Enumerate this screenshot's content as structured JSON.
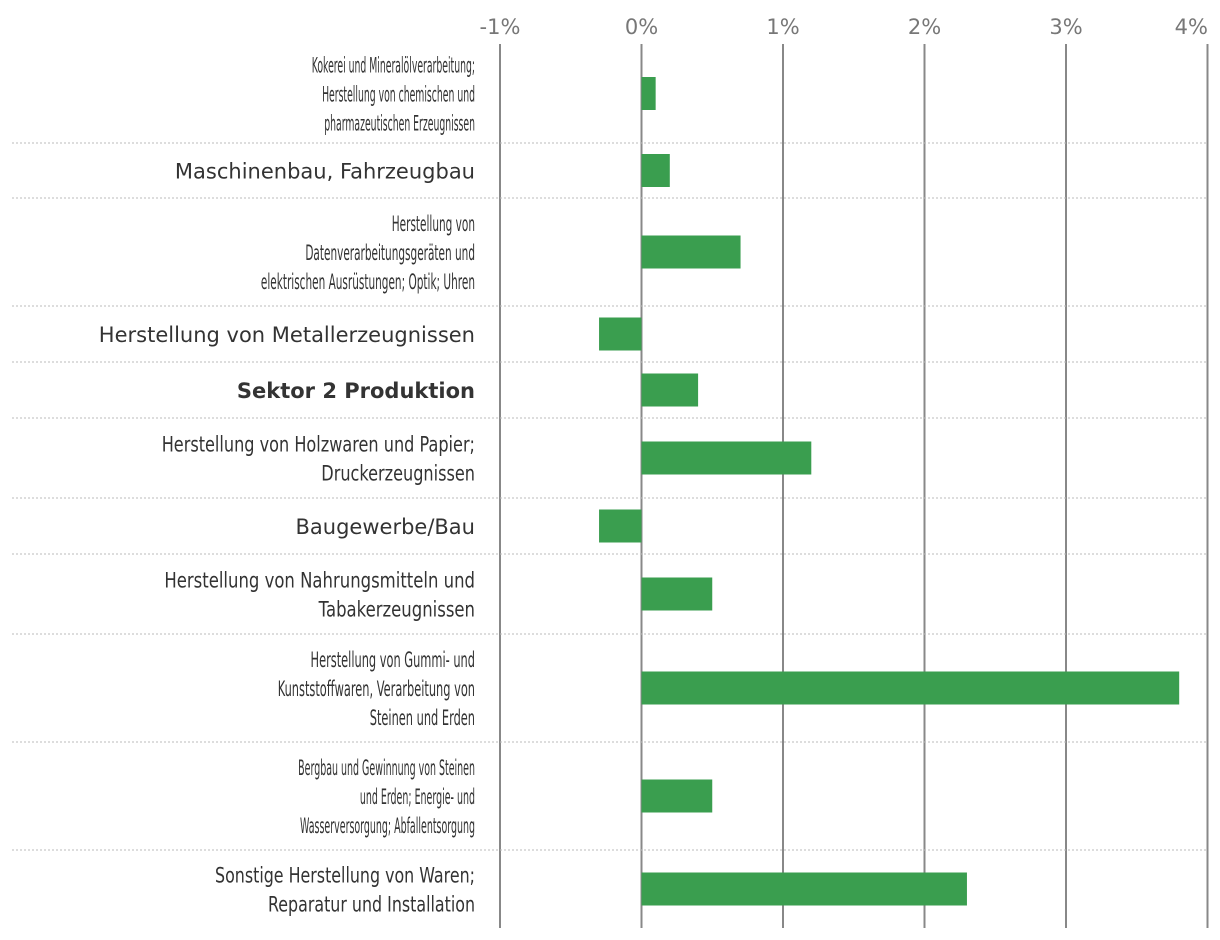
{
  "chart_data": {
    "type": "bar",
    "orientation": "horizontal",
    "title": "",
    "xlabel": "",
    "ylabel": "",
    "xlim": [
      -1,
      4
    ],
    "ticks": [
      {
        "value": -1,
        "label": "-1%"
      },
      {
        "value": 0,
        "label": "0%"
      },
      {
        "value": 1,
        "label": "1%"
      },
      {
        "value": 2,
        "label": "2%"
      },
      {
        "value": 3,
        "label": "3%"
      },
      {
        "value": 4,
        "label": "4%"
      }
    ],
    "grid": true,
    "legend": "none",
    "colors": {
      "bar": "#3a9e4f",
      "grid": "#888888",
      "separator": "#bbbbbb",
      "label": "#333333",
      "tick": "#777777"
    },
    "categories": [
      {
        "lines": [
          "Kokerei und Mineralölverarbeitung;",
          "Herstellung von chemischen und",
          "pharmazeutischen Erzeugnissen"
        ],
        "value": 0.1,
        "bold": false
      },
      {
        "lines": [
          "Maschinenbau, Fahrzeugbau"
        ],
        "value": 0.2,
        "bold": false
      },
      {
        "lines": [
          "Herstellung von",
          "Datenverarbeitungsgeräten und",
          "elektrischen Ausrüstungen; Optik; Uhren"
        ],
        "value": 0.7,
        "bold": false
      },
      {
        "lines": [
          "Herstellung von Metallerzeugnissen"
        ],
        "value": -0.3,
        "bold": false
      },
      {
        "lines": [
          "Sektor 2 Produktion"
        ],
        "value": 0.4,
        "bold": true
      },
      {
        "lines": [
          "Herstellung von Holzwaren und Papier;",
          "Druckerzeugnissen"
        ],
        "value": 1.2,
        "bold": false
      },
      {
        "lines": [
          "Baugewerbe/Bau"
        ],
        "value": -0.3,
        "bold": false
      },
      {
        "lines": [
          "Herstellung von Nahrungsmitteln und",
          "Tabakerzeugnissen"
        ],
        "value": 0.5,
        "bold": false
      },
      {
        "lines": [
          "Herstellung von Gummi- und",
          "Kunststoffwaren, Verarbeitung von",
          "Steinen und Erden"
        ],
        "value": 3.8,
        "bold": false
      },
      {
        "lines": [
          "Bergbau und Gewinnung von Steinen",
          "und Erden; Energie- und",
          "Wasserversorgung; Abfallentsorgung"
        ],
        "value": 0.5,
        "bold": false
      },
      {
        "lines": [
          "Sonstige Herstellung von Waren;",
          "Reparatur und Installation"
        ],
        "value": 2.3,
        "bold": false
      }
    ]
  }
}
